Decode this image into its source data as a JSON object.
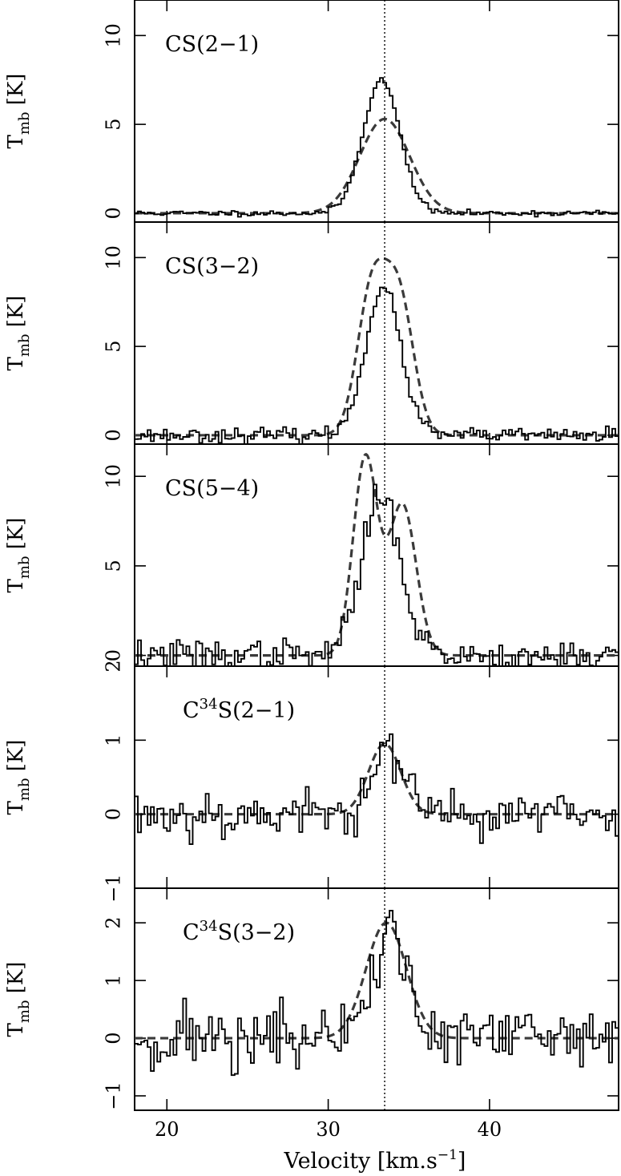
{
  "chart_data": {
    "type": "line",
    "xlabel": "Velocity [km.s",
    "xlabel_sup": "−1",
    "xlabel_close": "]",
    "xlim": [
      18,
      48
    ],
    "x_ticks": [
      20,
      30,
      40
    ],
    "x_tick_labels": [
      "20",
      "30",
      "40"
    ],
    "vline_x": 33.5,
    "colors": {
      "observed": "#000000",
      "model": "#3a3a3a"
    },
    "panels": [
      {
        "label_main": "CS(2−1)",
        "label_pre": "",
        "label_sup": "",
        "label_post": "",
        "ylabel": "T",
        "ylabel_sub": "mb",
        "ylabel_unit": " [K]",
        "ylim": [
          -0.5,
          12
        ],
        "y_ticks": [
          0,
          5,
          10
        ],
        "y_tick_labels": [
          "0",
          "5",
          "10"
        ],
        "observed": {
          "peak": 7.5,
          "center": 33.3,
          "sigma": 1.15,
          "noise": 0.08,
          "seed": 11
        },
        "model": {
          "components": [
            {
              "amp": 5.3,
              "center": 33.5,
              "sigma": 1.55
            }
          ]
        }
      },
      {
        "label_main": "CS(3−2)",
        "label_pre": "",
        "label_sup": "",
        "label_post": "",
        "ylabel": "T",
        "ylabel_sub": "mb",
        "ylabel_unit": " [K]",
        "ylim": [
          -0.5,
          12
        ],
        "y_ticks": [
          0,
          5,
          10
        ],
        "y_tick_labels": [
          "0",
          "5",
          "10"
        ],
        "observed": {
          "peak": 8.3,
          "center": 33.4,
          "sigma": 1.1,
          "noise": 0.2,
          "seed": 23
        },
        "model": {
          "components": [
            {
              "amp": 8.0,
              "center": 32.7,
              "sigma": 0.9
            },
            {
              "amp": 7.5,
              "center": 34.4,
              "sigma": 0.9
            }
          ]
        }
      },
      {
        "label_main": "CS(5−4)",
        "label_pre": "",
        "label_sup": "",
        "label_post": "",
        "ylabel": "T",
        "ylabel_sub": "mb",
        "ylabel_unit": " [K]",
        "ylim": [
          -0.6,
          11.8
        ],
        "y_ticks": [
          0,
          5,
          10
        ],
        "y_tick_labels": [
          "0",
          "5",
          "10"
        ],
        "observed": {
          "peak": 9.0,
          "center": 33.3,
          "sigma": 1.2,
          "noise": 0.45,
          "seed": 37
        },
        "model": {
          "components": [
            {
              "amp": 11.0,
              "center": 32.3,
              "sigma": 0.75
            },
            {
              "amp": 8.4,
              "center": 34.6,
              "sigma": 0.85
            }
          ]
        }
      },
      {
        "label_main": "",
        "label_pre": "C",
        "label_sup": "34",
        "label_post": "S(2−1)",
        "ylabel": "T",
        "ylabel_sub": "mb",
        "ylabel_unit": " [K]",
        "ylim": [
          -1,
          2
        ],
        "y_ticks": [
          -1,
          0,
          1,
          2
        ],
        "y_tick_labels": [
          "−1",
          "0",
          "1",
          "2"
        ],
        "observed": {
          "peak": 0.9,
          "center": 33.6,
          "sigma": 1.0,
          "noise": 0.17,
          "seed": 53
        },
        "model": {
          "components": [
            {
              "amp": 0.95,
              "center": 33.5,
              "sigma": 1.0
            }
          ]
        }
      },
      {
        "label_main": "",
        "label_pre": "C",
        "label_sup": "34",
        "label_post": "S(3−2)",
        "ylabel": "T",
        "ylabel_sub": "mb",
        "ylabel_unit": " [K]",
        "ylim": [
          -1.25,
          2.6
        ],
        "y_ticks": [
          -1,
          0,
          1,
          2
        ],
        "y_tick_labels": [
          "−1",
          "0",
          "1",
          "2"
        ],
        "observed": {
          "peak": 1.9,
          "center": 33.8,
          "sigma": 1.0,
          "noise": 0.3,
          "seed": 71
        },
        "model": {
          "components": [
            {
              "amp": 2.0,
              "center": 33.6,
              "sigma": 1.25
            }
          ]
        }
      }
    ]
  }
}
